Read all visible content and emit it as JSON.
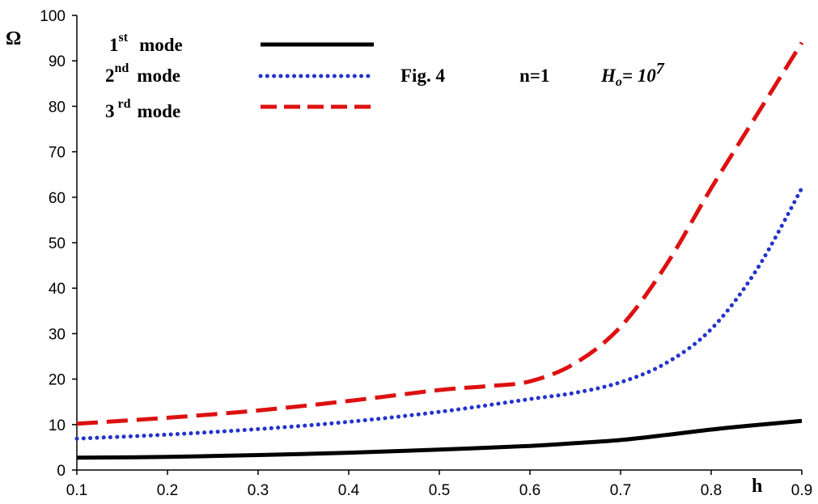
{
  "chart_data": {
    "type": "line",
    "title": "",
    "xlabel": "h",
    "ylabel": "Ω",
    "xlim": [
      0.1,
      0.9
    ],
    "ylim": [
      0,
      100
    ],
    "xticks": [
      "0.1",
      "0.2",
      "0.3",
      "0.4",
      "0.5",
      "0.6",
      "0.7",
      "0.8",
      "0.9"
    ],
    "yticks": [
      "0",
      "10",
      "20",
      "30",
      "40",
      "50",
      "60",
      "70",
      "80",
      "90",
      "100"
    ],
    "grid": false,
    "legend_position": "top-left",
    "series": [
      {
        "name": "1st mode",
        "label_num": "1",
        "label_sup": "st",
        "label_word": "mode",
        "color": "#000000",
        "style": "solid",
        "x": [
          0.1,
          0.2,
          0.3,
          0.4,
          0.5,
          0.6,
          0.65,
          0.7,
          0.75,
          0.8,
          0.85,
          0.9
        ],
        "y": [
          2.7,
          2.9,
          3.3,
          3.8,
          4.5,
          5.3,
          5.9,
          6.6,
          7.7,
          8.9,
          9.9,
          10.8
        ]
      },
      {
        "name": "2nd mode",
        "label_num": "2",
        "label_sup": "nd",
        "label_word": "mode",
        "color": "#2233cc",
        "style": "dotted",
        "x": [
          0.1,
          0.2,
          0.3,
          0.4,
          0.5,
          0.6,
          0.65,
          0.7,
          0.75,
          0.8,
          0.85,
          0.9
        ],
        "y": [
          6.9,
          7.8,
          9.0,
          10.6,
          12.8,
          15.6,
          17.0,
          19.3,
          23.5,
          31.0,
          44.0,
          62.0
        ]
      },
      {
        "name": "3rd mode",
        "label_num": "3",
        "label_sup": "rd",
        "label_word": "mode",
        "color": "#dd1111",
        "style": "dashed",
        "x": [
          0.1,
          0.2,
          0.3,
          0.4,
          0.5,
          0.55,
          0.6,
          0.65,
          0.7,
          0.75,
          0.8,
          0.85,
          0.9
        ],
        "y": [
          10.2,
          11.5,
          13.1,
          15.2,
          17.6,
          18.4,
          19.5,
          23.5,
          31.5,
          45.0,
          62.0,
          78.0,
          94.0
        ]
      }
    ],
    "annotations": {
      "fig": "Fig. 4",
      "n": "n=1",
      "h_main": "H",
      "h_sub": "o",
      "h_eq": "= 10",
      "h_exp": "7"
    }
  }
}
